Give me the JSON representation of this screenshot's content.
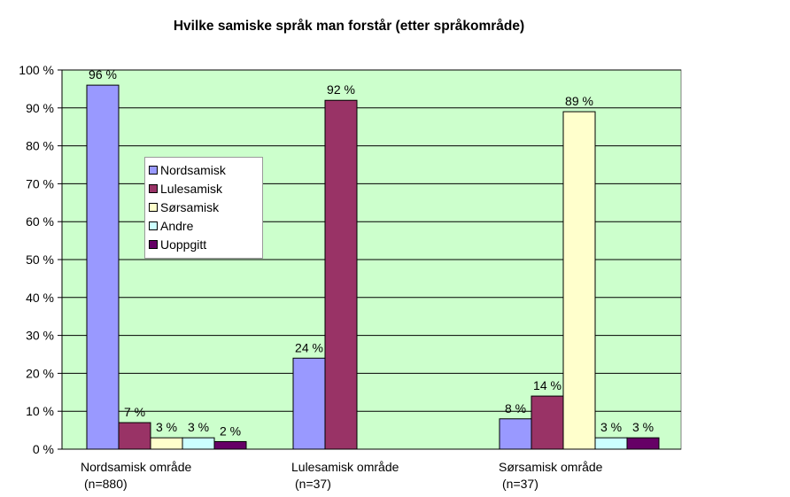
{
  "chart_data": {
    "type": "bar",
    "title": "Hvilke samiske språk man forstår (etter språkområde)",
    "categories": [
      {
        "name": "Nordsamisk område",
        "sub": "(n=880)"
      },
      {
        "name": "Lulesamisk område",
        "sub": "(n=37)"
      },
      {
        "name": "Sørsamisk område",
        "sub": "(n=37)"
      }
    ],
    "series": [
      {
        "name": "Nordsamisk",
        "color": "#9999ff",
        "values": [
          96,
          24,
          8
        ]
      },
      {
        "name": "Lulesamisk",
        "color": "#993366",
        "values": [
          7,
          92,
          14
        ]
      },
      {
        "name": "Sørsamisk",
        "color": "#ffffcc",
        "values": [
          3,
          null,
          89
        ]
      },
      {
        "name": "Andre",
        "color": "#ccffff",
        "values": [
          3,
          null,
          3
        ]
      },
      {
        "name": "Uoppgitt",
        "color": "#660066",
        "values": [
          2,
          null,
          3
        ]
      }
    ],
    "value_labels": [
      [
        "96 %",
        "24 %",
        "8 %"
      ],
      [
        "7 %",
        "92 %",
        "14 %"
      ],
      [
        "3 %",
        "",
        "89 %"
      ],
      [
        "3 %",
        "",
        "3 %"
      ],
      [
        "2 %",
        "",
        "3 %"
      ]
    ],
    "yticks": [
      "0 %",
      "10 %",
      "20 %",
      "30 %",
      "40 %",
      "50 %",
      "60 %",
      "70 %",
      "80 %",
      "90 %",
      "100 %"
    ],
    "ylim": [
      0,
      100
    ],
    "plot_background": "#ccffcc",
    "grid": true,
    "legend_position": "upper-left inside plot"
  }
}
